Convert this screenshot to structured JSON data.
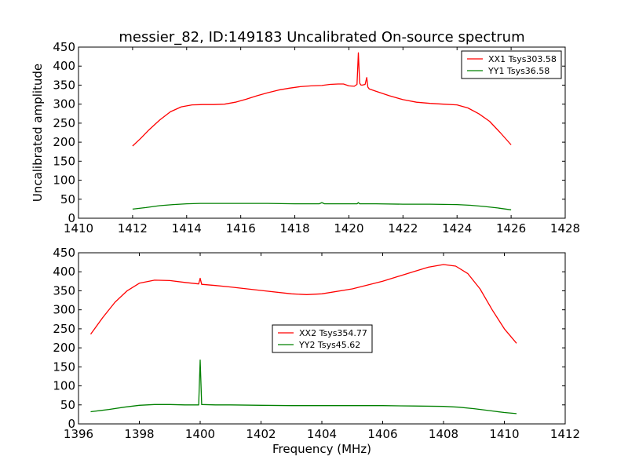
{
  "figure": {
    "title": "messier_82, ID:149183 Uncalibrated On-source spectrum"
  },
  "chart_data": [
    {
      "type": "line",
      "title": "messier_82, ID:149183 Uncalibrated On-source spectrum",
      "xlabel": "",
      "ylabel": "Uncalibrated amplitude",
      "xlim": [
        1410,
        1428
      ],
      "ylim": [
        0,
        450
      ],
      "xticks": [
        1410,
        1412,
        1414,
        1416,
        1418,
        1420,
        1422,
        1424,
        1426,
        1428
      ],
      "yticks": [
        0,
        50,
        100,
        150,
        200,
        250,
        300,
        350,
        400,
        450
      ],
      "grid": false,
      "legend_position": "top-right",
      "series": [
        {
          "name": "XX1 Tsys303.58",
          "color": "#ff0000",
          "x": [
            1412.0,
            1412.3,
            1412.6,
            1413.0,
            1413.4,
            1413.8,
            1414.2,
            1414.6,
            1415.0,
            1415.4,
            1415.8,
            1416.2,
            1416.6,
            1417.0,
            1417.4,
            1417.8,
            1418.2,
            1418.6,
            1419.0,
            1419.3,
            1419.6,
            1419.8,
            1420.0,
            1420.2,
            1420.3,
            1420.35,
            1420.4,
            1420.45,
            1420.5,
            1420.6,
            1420.66,
            1420.7,
            1420.75,
            1421.0,
            1421.5,
            1422.0,
            1422.5,
            1423.0,
            1423.5,
            1424.0,
            1424.4,
            1424.8,
            1425.2,
            1425.6,
            1426.0
          ],
          "y": [
            190,
            210,
            232,
            258,
            280,
            293,
            298,
            299,
            299,
            300,
            305,
            313,
            322,
            330,
            337,
            342,
            346,
            348,
            349,
            352,
            353,
            353,
            348,
            347,
            352,
            435,
            355,
            350,
            350,
            352,
            370,
            345,
            340,
            334,
            322,
            312,
            305,
            302,
            300,
            298,
            290,
            275,
            255,
            225,
            193
          ]
        },
        {
          "name": "YY1 Tsys36.58",
          "color": "#008000",
          "x": [
            1412.0,
            1412.5,
            1413.0,
            1413.5,
            1414.0,
            1414.5,
            1415.0,
            1416.0,
            1417.0,
            1418.0,
            1418.9,
            1419.0,
            1419.1,
            1420.0,
            1420.3,
            1420.35,
            1420.4,
            1421.0,
            1422.0,
            1423.0,
            1424.0,
            1424.5,
            1425.0,
            1425.5,
            1426.0
          ],
          "y": [
            24,
            28,
            33,
            36,
            38,
            39,
            39,
            39,
            39,
            38,
            38,
            41,
            38,
            38,
            38,
            41,
            38,
            38,
            37,
            37,
            36,
            34,
            31,
            27,
            22
          ]
        }
      ]
    },
    {
      "type": "line",
      "title": "",
      "xlabel": "Frequency (MHz)",
      "ylabel": "",
      "xlim": [
        1396,
        1412
      ],
      "ylim": [
        0,
        450
      ],
      "xticks": [
        1396,
        1398,
        1400,
        1402,
        1404,
        1406,
        1408,
        1410,
        1412
      ],
      "yticks": [
        0,
        50,
        100,
        150,
        200,
        250,
        300,
        350,
        400,
        450
      ],
      "grid": false,
      "legend_position": "center",
      "series": [
        {
          "name": "XX2 Tsys354.77",
          "color": "#ff0000",
          "x": [
            1396.4,
            1396.8,
            1397.2,
            1397.6,
            1398.0,
            1398.5,
            1399.0,
            1399.5,
            1399.95,
            1400.0,
            1400.05,
            1400.5,
            1401.0,
            1402.0,
            1403.0,
            1403.5,
            1404.0,
            1405.0,
            1406.0,
            1407.0,
            1407.5,
            1408.0,
            1408.4,
            1408.8,
            1409.2,
            1409.6,
            1410.0,
            1410.4
          ],
          "y": [
            236,
            280,
            320,
            350,
            370,
            378,
            377,
            372,
            368,
            383,
            367,
            364,
            360,
            351,
            342,
            340,
            342,
            355,
            375,
            400,
            412,
            419,
            415,
            395,
            355,
            300,
            250,
            212
          ]
        },
        {
          "name": "YY2 Tsys45.62",
          "color": "#008000",
          "x": [
            1396.4,
            1397.0,
            1397.5,
            1398.0,
            1398.5,
            1399.0,
            1399.5,
            1399.95,
            1400.0,
            1400.05,
            1400.5,
            1401.0,
            1402.0,
            1403.0,
            1404.0,
            1405.0,
            1406.0,
            1407.0,
            1408.0,
            1408.5,
            1409.0,
            1409.5,
            1410.0,
            1410.4
          ],
          "y": [
            32,
            38,
            44,
            49,
            51,
            51,
            50,
            50,
            168,
            51,
            50,
            50,
            49,
            48,
            48,
            48,
            48,
            47,
            46,
            44,
            40,
            35,
            30,
            27
          ]
        }
      ]
    }
  ]
}
